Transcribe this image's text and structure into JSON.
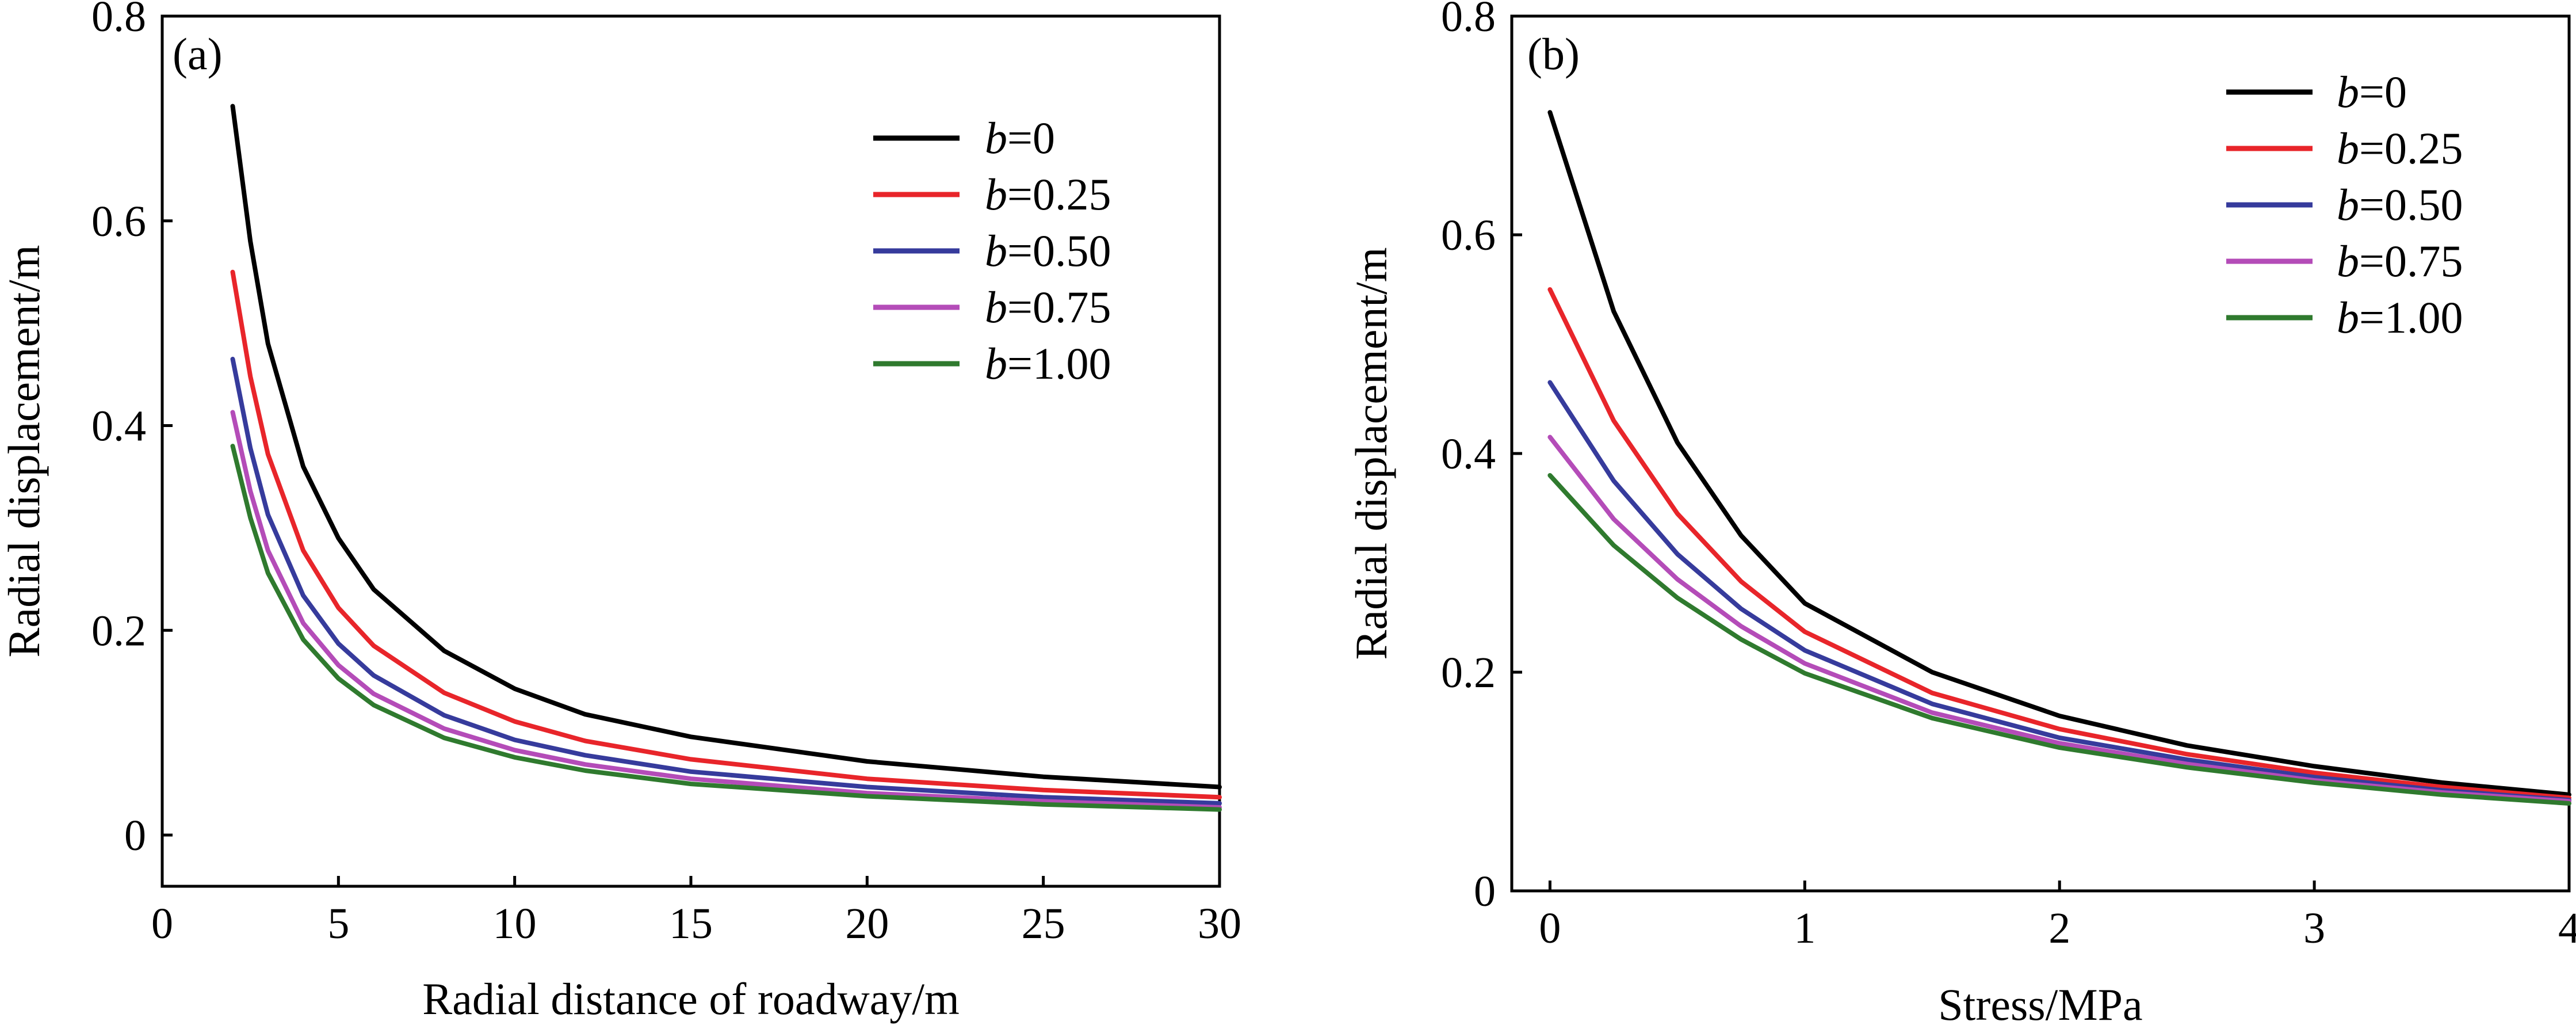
{
  "legend_var": "b",
  "chart_data": [
    {
      "type": "line",
      "panel_label": "(a)",
      "xlabel": "Radial distance of roadway/m",
      "ylabel": "Radial displacement/m",
      "xlim": [
        0,
        30
      ],
      "ylim": [
        -0.05,
        0.8
      ],
      "xticks": [
        0,
        5,
        10,
        15,
        20,
        25,
        30
      ],
      "xtick_labels": [
        "0",
        "5",
        "10",
        "15",
        "20",
        "25",
        "30"
      ],
      "yticks": [
        0,
        0.2,
        0.4,
        0.6,
        0.8
      ],
      "ytick_labels": [
        "0",
        "0.2",
        "0.4",
        "0.6",
        "0.8"
      ],
      "legend_position": "top-right",
      "x": [
        2,
        2.5,
        3,
        4,
        5,
        6,
        8,
        10,
        12,
        15,
        20,
        25,
        30
      ],
      "series": [
        {
          "name": "=0",
          "color": "#000000",
          "values": [
            0.712,
            0.58,
            0.48,
            0.36,
            0.29,
            0.24,
            0.18,
            0.143,
            0.118,
            0.096,
            0.072,
            0.057,
            0.047
          ]
        },
        {
          "name": "=0.25",
          "color": "#e8252a",
          "values": [
            0.55,
            0.448,
            0.372,
            0.278,
            0.222,
            0.185,
            0.139,
            0.111,
            0.092,
            0.074,
            0.055,
            0.044,
            0.037
          ]
        },
        {
          "name": "=0.50",
          "color": "#363b9c",
          "values": [
            0.465,
            0.378,
            0.313,
            0.234,
            0.187,
            0.156,
            0.117,
            0.093,
            0.078,
            0.062,
            0.047,
            0.037,
            0.031
          ]
        },
        {
          "name": "=0.75",
          "color": "#b44cb8",
          "values": [
            0.413,
            0.336,
            0.278,
            0.207,
            0.166,
            0.138,
            0.104,
            0.083,
            0.069,
            0.055,
            0.041,
            0.033,
            0.027
          ]
        },
        {
          "name": "=1.00",
          "color": "#2f7a2e",
          "values": [
            0.38,
            0.31,
            0.256,
            0.191,
            0.153,
            0.127,
            0.095,
            0.076,
            0.063,
            0.05,
            0.038,
            0.03,
            0.025
          ]
        }
      ]
    },
    {
      "type": "line",
      "panel_label": "(b)",
      "xlabel": "Stress/MPa",
      "ylabel": "Radial displacement/m",
      "xlim": [
        -0.15,
        4
      ],
      "ylim": [
        0,
        0.8
      ],
      "xticks": [
        0,
        1,
        2,
        3,
        4
      ],
      "xtick_labels": [
        "0",
        "1",
        "2",
        "3",
        "4"
      ],
      "yticks": [
        0,
        0.2,
        0.4,
        0.6,
        0.8
      ],
      "ytick_labels": [
        "0",
        "0.2",
        "0.4",
        "0.6",
        "0.8"
      ],
      "legend_position": "top-right",
      "x": [
        0,
        0.25,
        0.5,
        0.75,
        1,
        1.5,
        2,
        2.5,
        3,
        3.5,
        4
      ],
      "series": [
        {
          "name": "=0",
          "color": "#000000",
          "values": [
            0.712,
            0.53,
            0.41,
            0.325,
            0.263,
            0.2,
            0.16,
            0.133,
            0.114,
            0.099,
            0.088
          ]
        },
        {
          "name": "=0.25",
          "color": "#e8252a",
          "values": [
            0.55,
            0.43,
            0.345,
            0.283,
            0.237,
            0.181,
            0.148,
            0.125,
            0.108,
            0.095,
            0.085
          ]
        },
        {
          "name": "=0.50",
          "color": "#363b9c",
          "values": [
            0.465,
            0.375,
            0.308,
            0.258,
            0.22,
            0.171,
            0.14,
            0.12,
            0.104,
            0.092,
            0.083
          ]
        },
        {
          "name": "=0.75",
          "color": "#b44cb8",
          "values": [
            0.415,
            0.34,
            0.285,
            0.242,
            0.208,
            0.163,
            0.135,
            0.116,
            0.101,
            0.09,
            0.082
          ]
        },
        {
          "name": "=1.00",
          "color": "#2f7a2e",
          "values": [
            0.38,
            0.316,
            0.268,
            0.23,
            0.199,
            0.158,
            0.131,
            0.113,
            0.099,
            0.088,
            0.08
          ]
        }
      ]
    }
  ]
}
